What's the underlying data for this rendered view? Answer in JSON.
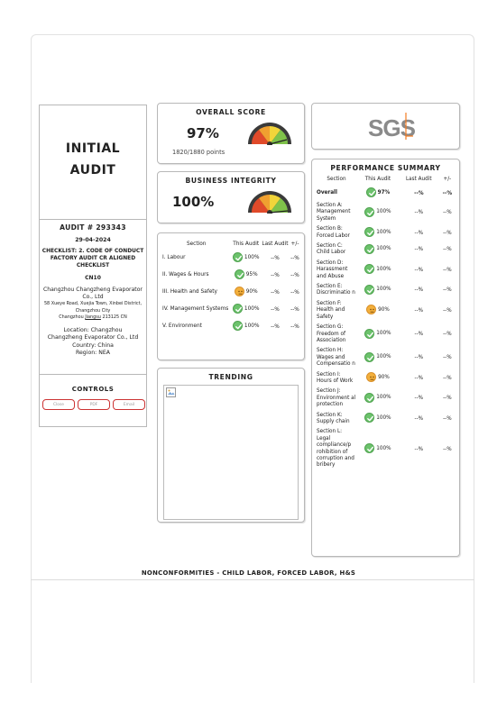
{
  "report": {
    "type_line1": "INITIAL",
    "type_line2": "AUDIT",
    "audit_number": "AUDIT # 293343",
    "date": "29-04-2024",
    "checklist": "CHECKLIST: 2. CODE OF CONDUCT FACTORY AUDIT CR ALIGNED CHECKLIST",
    "code": "CN10",
    "company": "Changzhou Changzheng Evaporator Co., Ltd",
    "address": "58 Xueye Road, Xuejia Town, Xinbei District, Changzhou City",
    "address_line2_pre": "Changzhou ",
    "address_province": "Jiangsu",
    "address_line2_post": " 213125 CN",
    "location": "Location: Changzhou",
    "location_company": "Changzheng Evaporator Co., Ltd",
    "country": "Country: China",
    "region": "Region: NEA"
  },
  "controls": {
    "title": "CONTROLS",
    "buttons": [
      "Close",
      "PDF",
      "Email"
    ]
  },
  "overall_score": {
    "title": "OVERALL SCORE",
    "percent": "97%",
    "points": "1820/1880 points",
    "gauge_level": 0.97
  },
  "business_integrity": {
    "title": "BUSINESS INTEGRITY",
    "percent": "100%",
    "gauge_level": 1.0
  },
  "logo": {
    "text": "SGS"
  },
  "section_table": {
    "headers": [
      "Section",
      "This Audit",
      "Last Audit",
      "+/-"
    ],
    "rows": [
      {
        "section": "I. Labour",
        "this": "100%",
        "status": "ok",
        "last": "--%",
        "diff": "--%"
      },
      {
        "section": "II. Wages & Hours",
        "this": "95%",
        "status": "ok",
        "last": "--%",
        "diff": "--%"
      },
      {
        "section": "III. Health and Safety",
        "this": "90%",
        "status": "warn",
        "last": "--%",
        "diff": "--%"
      },
      {
        "section": "IV. Management Systems",
        "this": "100%",
        "status": "ok",
        "last": "--%",
        "diff": "--%"
      },
      {
        "section": "V. Environment",
        "this": "100%",
        "status": "ok",
        "last": "--%",
        "diff": "--%"
      }
    ]
  },
  "trending": {
    "title": "TRENDING"
  },
  "performance": {
    "title": "PERFORMANCE SUMMARY",
    "headers": [
      "Section",
      "This Audit",
      "Last Audit",
      "+/-"
    ],
    "rows": [
      {
        "section": "Overall",
        "this": "97%",
        "status": "ok",
        "last": "--%",
        "diff": "--%",
        "bold": true
      },
      {
        "section": "Section A: Management System",
        "this": "100%",
        "status": "ok",
        "last": "--%",
        "diff": "--%"
      },
      {
        "section": "Section B: Forced Labor",
        "this": "100%",
        "status": "ok",
        "last": "--%",
        "diff": "--%"
      },
      {
        "section": "Section C: Child Labor",
        "this": "100%",
        "status": "ok",
        "last": "--%",
        "diff": "--%"
      },
      {
        "section": "Section D: Harassment and Abuse",
        "this": "100%",
        "status": "ok",
        "last": "--%",
        "diff": "--%"
      },
      {
        "section": "Section E: Discriminatio n",
        "this": "100%",
        "status": "ok",
        "last": "--%",
        "diff": "--%"
      },
      {
        "section": "Section F: Health and Safety",
        "this": "90%",
        "status": "warn",
        "last": "--%",
        "diff": "--%"
      },
      {
        "section": "Section G: Freedom of Association",
        "this": "100%",
        "status": "ok",
        "last": "--%",
        "diff": "--%"
      },
      {
        "section": "Section H: Wages and Compensatio n",
        "this": "100%",
        "status": "ok",
        "last": "--%",
        "diff": "--%"
      },
      {
        "section": "Section I: Hours of Work",
        "this": "90%",
        "status": "warn",
        "last": "--%",
        "diff": "--%"
      },
      {
        "section": "Section J: Environment al protection",
        "this": "100%",
        "status": "ok",
        "last": "--%",
        "diff": "--%"
      },
      {
        "section": "Section K: Supply chain",
        "this": "100%",
        "status": "ok",
        "last": "--%",
        "diff": "--%"
      },
      {
        "section": "Section L: Legal compliance/p rohibition of corruption and bribery",
        "this": "100%",
        "status": "ok",
        "last": "--%",
        "diff": "--%"
      }
    ]
  },
  "footer": {
    "title": "NONCONFORMITIES - CHILD LABOR, FORCED LABOR, H&S"
  }
}
